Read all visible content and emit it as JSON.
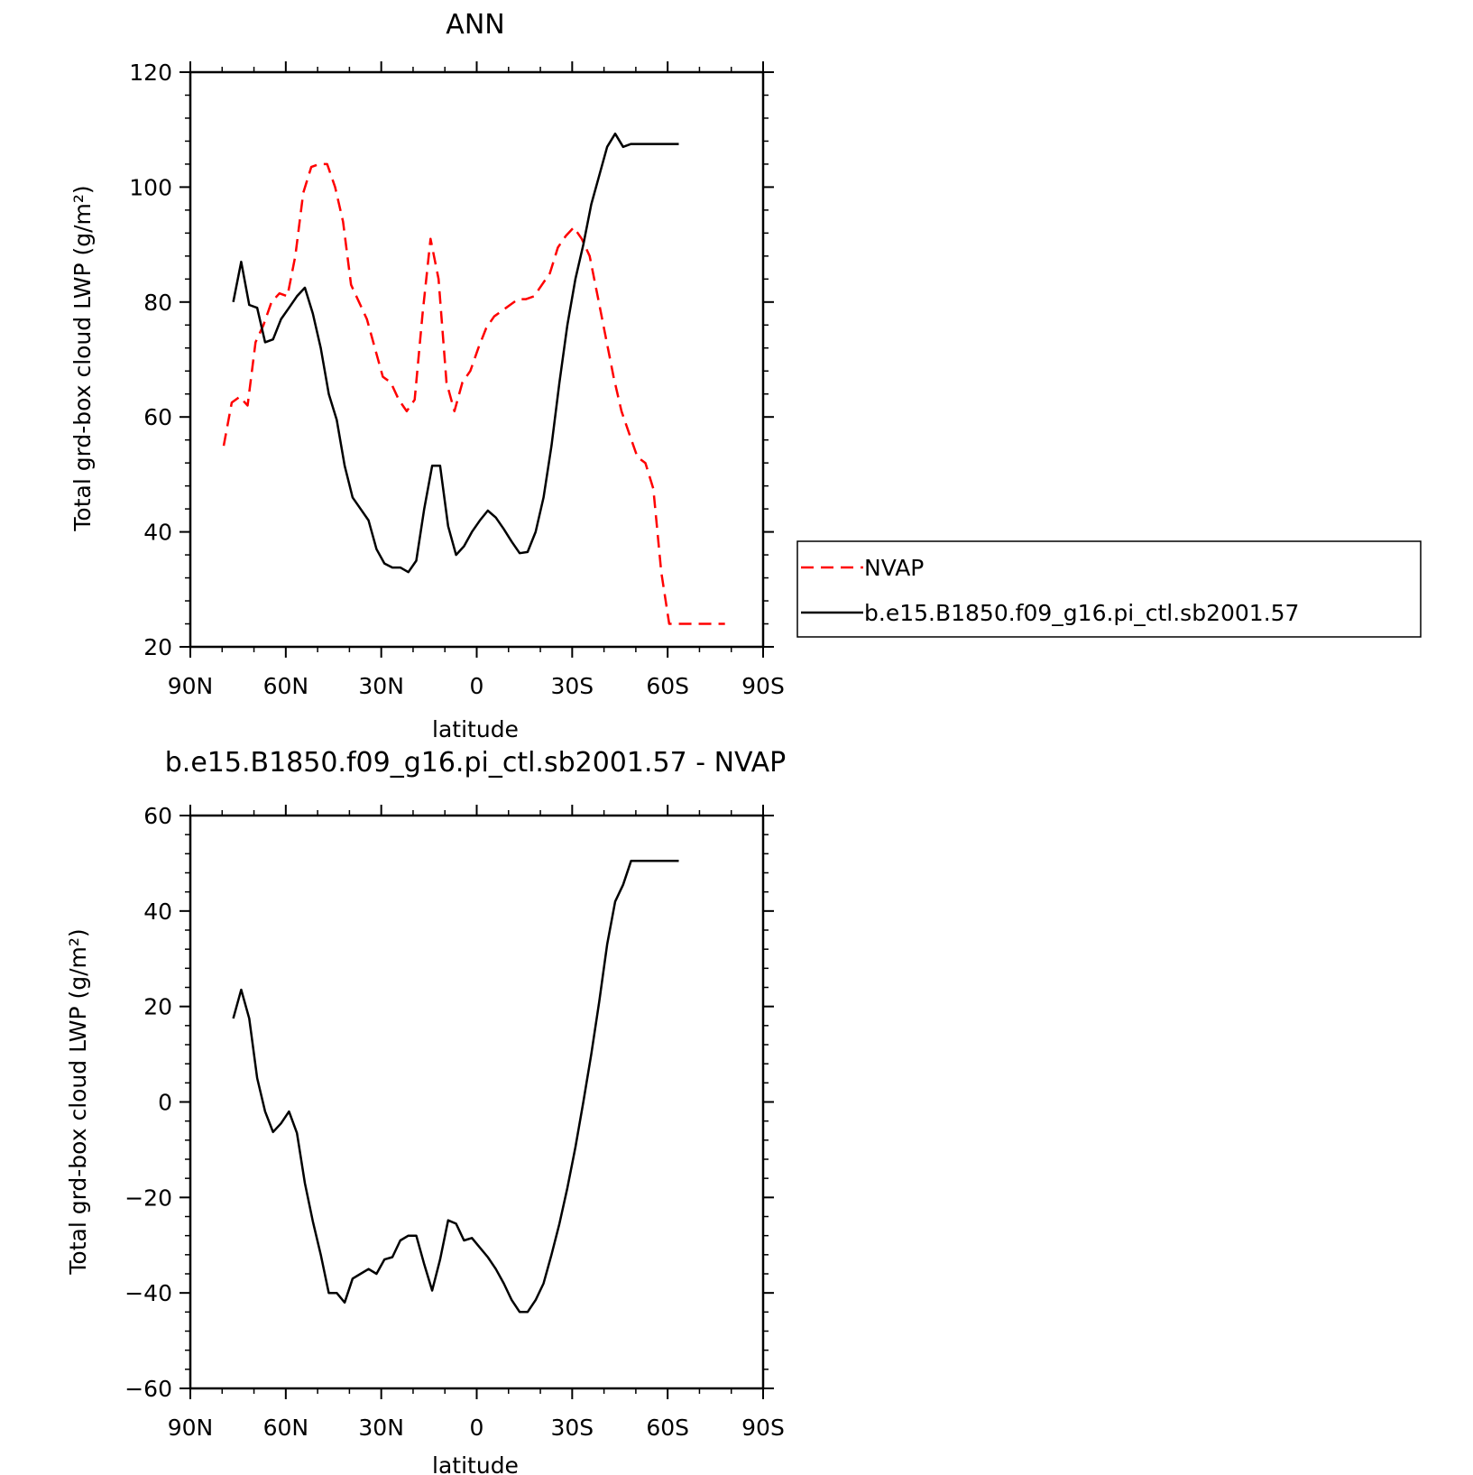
{
  "chart_data": [
    {
      "type": "line",
      "title": "ANN",
      "xlabel": "latitude",
      "ylabel": "Total grd-box cloud LWP (g/m²)",
      "xlim": [
        90,
        -90
      ],
      "ylim": [
        20,
        120
      ],
      "xticks": [
        90,
        60,
        30,
        0,
        -30,
        -60,
        -90
      ],
      "xtick_labels": [
        "90N",
        "60N",
        "30N",
        "0",
        "30S",
        "60S",
        "90S"
      ],
      "yticks": [
        20,
        40,
        60,
        80,
        100,
        120
      ],
      "ytick_labels": [
        "20",
        "40",
        "60",
        "80",
        "100",
        "120"
      ],
      "legend": {
        "placement": "right",
        "entries": [
          "NVAP",
          "b.e15.B1850.f09_g16.pi_ctl.sb2001.57"
        ]
      },
      "series": [
        {
          "name": "NVAP",
          "color": "#ff0000",
          "dash": true,
          "x": [
            79.5,
            77,
            74.5,
            72,
            69.5,
            67,
            64.5,
            62,
            59.5,
            57,
            54.5,
            52,
            49.5,
            47,
            44.5,
            42,
            39.5,
            37,
            34.5,
            32,
            29.5,
            27,
            24.5,
            22,
            19.5,
            17,
            14.5,
            12,
            9.5,
            7,
            4.5,
            2,
            -0.5,
            -3,
            -5.5,
            -8,
            -10.5,
            -13,
            -15.5,
            -18,
            -20.5,
            -23,
            -25.5,
            -28,
            -30.5,
            -33,
            -35.5,
            -38,
            -40.5,
            -43,
            -45.5,
            -48,
            -50.5,
            -53,
            -55.5,
            -58,
            -60.5,
            -63,
            -65.5,
            -68,
            -70.5,
            -73,
            -75.5,
            -78
          ],
          "y": [
            55,
            62.5,
            63.5,
            62,
            73,
            76,
            80,
            81.5,
            81,
            88,
            99,
            103.5,
            104,
            104,
            100,
            94,
            83,
            80,
            77,
            72,
            67,
            66,
            63,
            61,
            63,
            78,
            91,
            84,
            66,
            61,
            66,
            68,
            72,
            75.5,
            77.5,
            78.5,
            79.5,
            80.5,
            80.5,
            81,
            83,
            85,
            89.5,
            91.5,
            93,
            91,
            88,
            81,
            74,
            67,
            61,
            57,
            53,
            52,
            47.5,
            33,
            24,
            24,
            24,
            24,
            24,
            24,
            24,
            24
          ]
        },
        {
          "name": "b.e15.B1850.f09_g16.pi_ctl.sb2001.57",
          "color": "#000000",
          "dash": false,
          "x": [
            76.5,
            74,
            71.5,
            69,
            66.5,
            64,
            61.5,
            59,
            56.5,
            54,
            51.5,
            49,
            46.5,
            44,
            41.5,
            39,
            36.5,
            34,
            31.5,
            29,
            26.5,
            24,
            21.5,
            19,
            16.5,
            14,
            11.5,
            9,
            6.5,
            4,
            1.5,
            -1,
            -3.5,
            -6,
            -8.5,
            -11,
            -13.5,
            -16,
            -18.5,
            -21,
            -23.5,
            -26,
            -28.5,
            -31,
            -33.5,
            -36,
            -38.5,
            -41,
            -43.5,
            -46,
            -48.5,
            -51,
            -53.5,
            -56,
            -58.5,
            -61,
            -63.5
          ],
          "y": [
            80,
            87,
            79.5,
            79,
            73,
            73.5,
            77,
            79,
            81,
            82.5,
            78,
            72,
            64,
            59.5,
            51.5,
            46,
            44,
            42,
            37,
            34.5,
            33.8,
            33.8,
            33,
            35,
            44,
            51.5,
            51.5,
            41,
            36,
            37.5,
            40,
            42,
            43.7,
            42.5,
            40.5,
            38.3,
            36.3,
            36.5,
            40,
            46,
            55,
            66,
            76,
            84,
            90,
            97,
            102,
            107,
            109.3,
            107,
            107.5,
            107.5,
            107.5,
            107.5,
            107.5,
            107.5,
            107.5
          ]
        }
      ]
    },
    {
      "type": "line",
      "title": "b.e15.B1850.f09_g16.pi_ctl.sb2001.57 - NVAP",
      "xlabel": "latitude",
      "ylabel": "Total grd-box cloud LWP (g/m²)",
      "xlim": [
        90,
        -90
      ],
      "ylim": [
        -60,
        60
      ],
      "xticks": [
        90,
        60,
        30,
        0,
        -30,
        -60,
        -90
      ],
      "xtick_labels": [
        "90N",
        "60N",
        "30N",
        "0",
        "30S",
        "60S",
        "90S"
      ],
      "yticks": [
        -60,
        -40,
        -20,
        0,
        20,
        40,
        60
      ],
      "ytick_labels": [
        "−60",
        "−40",
        "−20",
        "0",
        "20",
        "40",
        "60"
      ],
      "series": [
        {
          "color": "#000000",
          "dash": false,
          "x": [
            76.5,
            74,
            71.5,
            69,
            66.5,
            64,
            61.5,
            59,
            56.5,
            54,
            51.5,
            49,
            46.5,
            44,
            41.5,
            39,
            36.5,
            34,
            31.5,
            29,
            26.5,
            24,
            21.5,
            19,
            16.5,
            14,
            11.5,
            9,
            6.5,
            4,
            1.5,
            -1,
            -3.5,
            -6,
            -8.5,
            -11,
            -13.5,
            -16,
            -18.5,
            -21,
            -23.5,
            -26,
            -28.5,
            -31,
            -33.5,
            -36,
            -38.5,
            -41,
            -43.5,
            -46,
            -48.5,
            -51,
            -53.5,
            -56,
            -58.5,
            -61,
            -63.5
          ],
          "y": [
            17.5,
            23.5,
            17.5,
            5,
            -2,
            -6.3,
            -4.5,
            -2,
            -6.5,
            -17,
            -25,
            -32,
            -40,
            -40,
            -42,
            -37,
            -36,
            -35,
            -36,
            -33,
            -32.5,
            -29,
            -28,
            -28,
            -34,
            -39.5,
            -33,
            -24.8,
            -25.5,
            -29,
            -28.5,
            -30.5,
            -32.5,
            -35,
            -38,
            -41.5,
            -44,
            -44,
            -41.5,
            -38,
            -32,
            -25.5,
            -18,
            -9.5,
            0,
            10,
            21,
            33,
            42,
            45.5,
            50.5,
            50.5,
            50.5,
            50.5,
            50.5,
            50.5,
            50.5
          ]
        }
      ]
    }
  ]
}
